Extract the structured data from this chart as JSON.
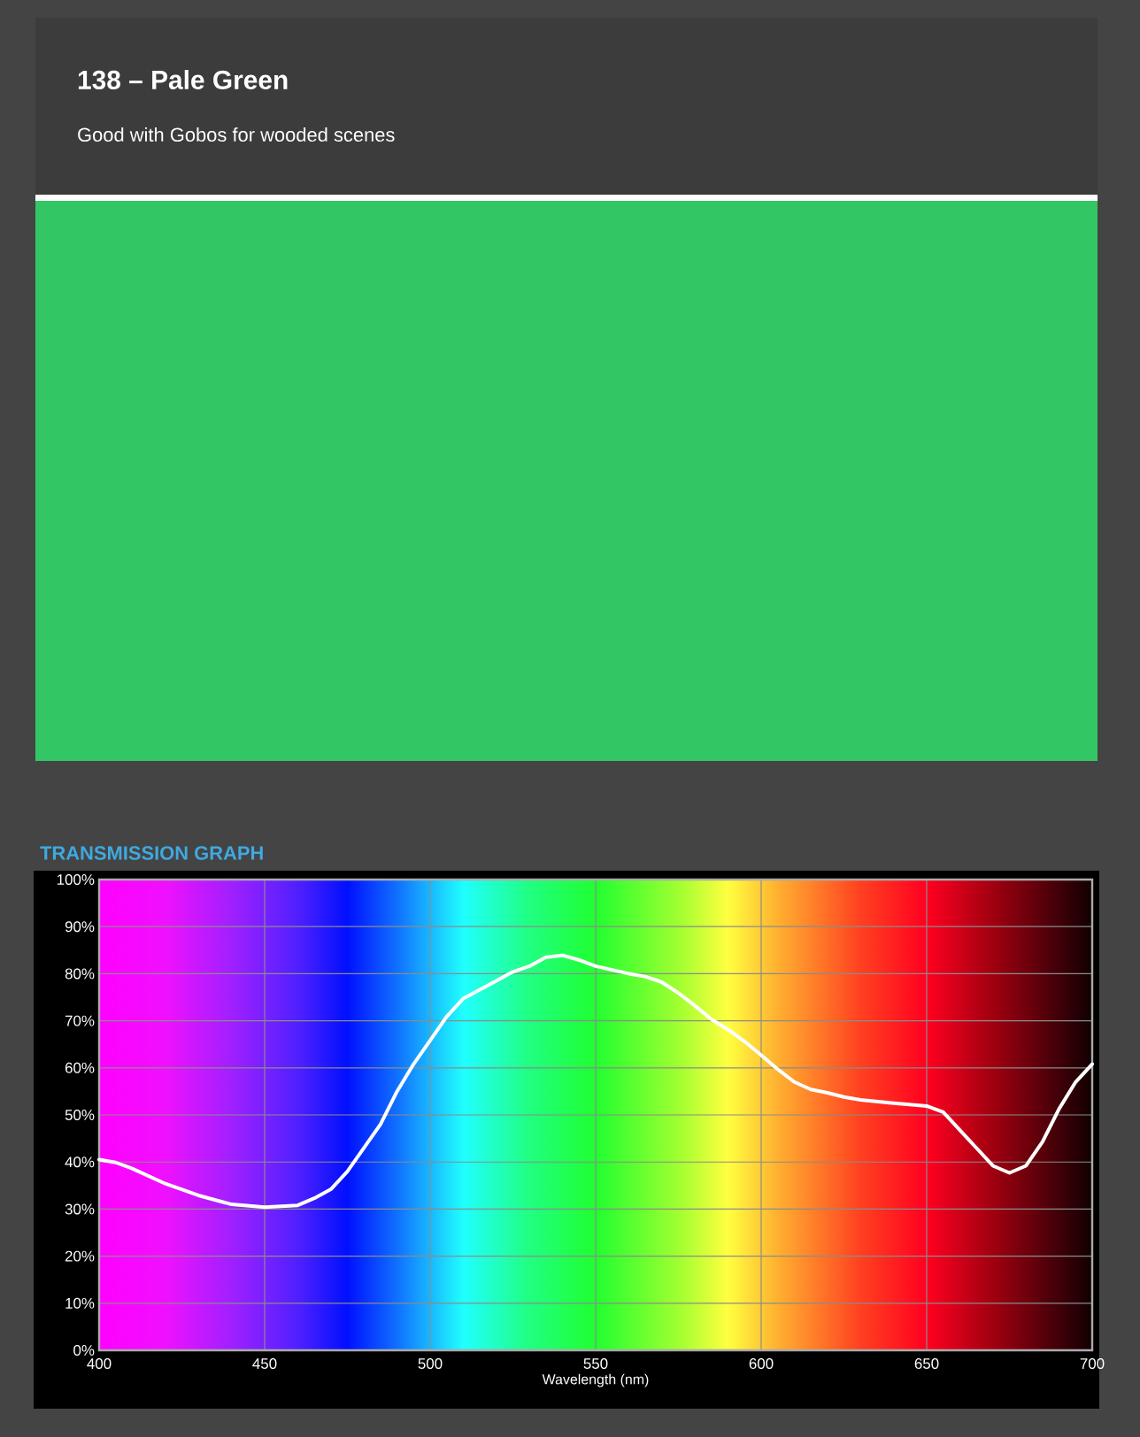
{
  "chart_data": {
    "type": "line",
    "title": "TRANSMISSION GRAPH",
    "annotations": [
      "138 – Pale Green",
      "Good with Gobos for wooded scenes"
    ],
    "xlabel": "Wavelength (nm)",
    "x": [
      400,
      405,
      410,
      420,
      430,
      440,
      450,
      460,
      465,
      470,
      475,
      480,
      485,
      490,
      495,
      500,
      505,
      510,
      515,
      520,
      525,
      530,
      535,
      540,
      545,
      550,
      555,
      560,
      565,
      570,
      575,
      580,
      585,
      590,
      595,
      600,
      605,
      610,
      615,
      620,
      625,
      630,
      640,
      650,
      655,
      660,
      665,
      670,
      675,
      680,
      685,
      690,
      695,
      700
    ],
    "series": [
      {
        "color": "#ffffff",
        "values": [
          40.5,
          39.9,
          38.6,
          35.4,
          32.9,
          31.0,
          30.4,
          30.8,
          32.3,
          34.2,
          38,
          43,
          48,
          55,
          60.8,
          65.8,
          70.9,
          74.7,
          76.6,
          78.5,
          80.4,
          81.6,
          83.5,
          83.9,
          82.9,
          81.6,
          80.8,
          80,
          79.4,
          78.2,
          75.9,
          73.2,
          70.3,
          68.1,
          65.6,
          62.7,
          59.7,
          57,
          55.4,
          54.7,
          53.8,
          53.2,
          52.5,
          51.9,
          50.6,
          46.8,
          43,
          39.2,
          37.7,
          39.2,
          44.3,
          51.3,
          57,
          60.8
        ]
      }
    ],
    "xlim": [
      400,
      700
    ],
    "xticks": [
      400,
      450,
      500,
      550,
      600,
      650,
      700
    ],
    "ylim": [
      0,
      100
    ],
    "yticks": [
      {
        "value": 0,
        "label": "0%"
      },
      {
        "value": 10,
        "label": "10%"
      },
      {
        "value": 20,
        "label": "20%"
      },
      {
        "value": 30,
        "label": "30%"
      },
      {
        "value": 40,
        "label": "40%"
      },
      {
        "value": 50,
        "label": "50%"
      },
      {
        "value": 60,
        "label": "60%"
      },
      {
        "value": 70,
        "label": "70%"
      },
      {
        "value": 80,
        "label": "80%"
      },
      {
        "value": 90,
        "label": "90%"
      },
      {
        "value": 100,
        "label": "100%"
      }
    ],
    "grid": true,
    "line_style": "solid"
  }
}
